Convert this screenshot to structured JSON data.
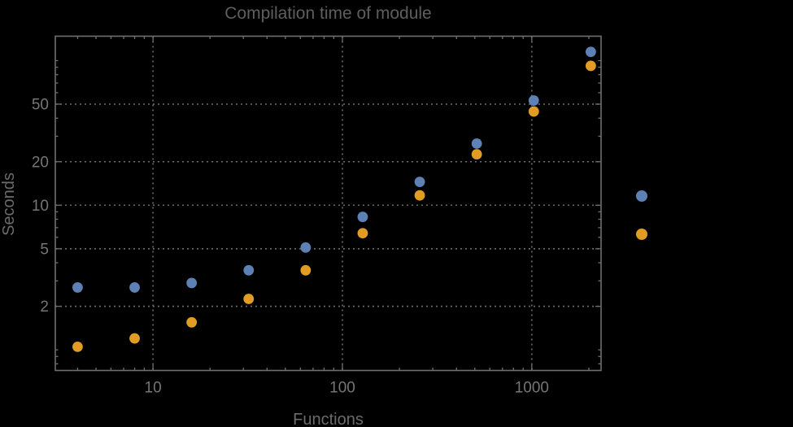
{
  "chart": {
    "title": "Compilation time of module",
    "x_axis_label": "Functions",
    "y_axis_label": "Seconds"
  },
  "chart_data": {
    "type": "scatter",
    "title": "Compilation time of module",
    "xlabel": "Functions",
    "ylabel": "Seconds",
    "x_scale": "log",
    "y_scale": "log",
    "xlim": [
      3.05,
      2320
    ],
    "ylim": [
      0.72,
      147.5
    ],
    "grid": "dotted-at-labeled-ticks",
    "x": [
      4,
      8,
      16,
      32,
      64,
      128,
      256,
      512,
      1024,
      2048
    ],
    "series": [
      {
        "name": "series-1-blue",
        "color": "#5E81B5",
        "values": [
          2.7,
          2.7,
          2.9,
          3.55,
          5.1,
          8.3,
          14.5,
          26.7,
          53,
          115
        ]
      },
      {
        "name": "series-2-orange",
        "color": "#E19C24",
        "values": [
          1.05,
          1.2,
          1.55,
          2.25,
          3.55,
          6.4,
          11.7,
          22.5,
          44.5,
          92
        ]
      }
    ],
    "x_ticks_labeled": [
      10,
      100,
      1000
    ],
    "y_ticks_labeled": [
      2,
      5,
      10,
      20,
      50
    ],
    "x_ticks_minor": [
      4,
      5,
      6,
      7,
      8,
      9,
      20,
      30,
      40,
      50,
      60,
      70,
      80,
      90,
      200,
      300,
      400,
      500,
      600,
      700,
      800,
      900,
      2000
    ],
    "y_ticks_minor": [
      0.8,
      0.9,
      1,
      3,
      4,
      6,
      7,
      8,
      9,
      30,
      40,
      60,
      70,
      80,
      90,
      100
    ],
    "legend": {
      "position": "right-outside",
      "entries": [
        {
          "marker": "disc",
          "marker_color": "#5E81B5",
          "label": ""
        },
        {
          "marker": "disc",
          "marker_color": "#E19C24",
          "label": ""
        }
      ]
    }
  },
  "colors": {
    "background": "#000000",
    "frame": "#6f6f6f",
    "gridlines": "#666666",
    "title_text": "#5e5e5e",
    "tick_label_text": "#757575",
    "axis_label_text": "#6b6b6b",
    "series1_blue": "#5E81B5",
    "series2_orange": "#E19C24"
  }
}
